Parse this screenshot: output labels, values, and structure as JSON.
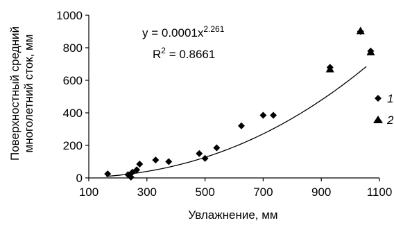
{
  "chart_data": {
    "type": "scatter",
    "xlabel": "Увлажнение, мм",
    "ylabel_lines": [
      "Поверхностный средний",
      "многолетний сток, мм"
    ],
    "xlim": [
      100,
      1100
    ],
    "ylim": [
      0,
      1000
    ],
    "x_ticks": [
      "100",
      "300",
      "500",
      "700",
      "900",
      "1100"
    ],
    "y_ticks": [
      "0",
      "200",
      "400",
      "600",
      "800",
      "1000"
    ],
    "grid": false,
    "legend_position": "right",
    "series": [
      {
        "name": "1",
        "marker": "diamond",
        "points": [
          [
            165,
            25
          ],
          [
            235,
            20
          ],
          [
            245,
            5
          ],
          [
            250,
            35
          ],
          [
            265,
            50
          ],
          [
            275,
            85
          ],
          [
            330,
            110
          ],
          [
            375,
            100
          ],
          [
            480,
            150
          ],
          [
            500,
            120
          ],
          [
            540,
            185
          ],
          [
            625,
            320
          ],
          [
            700,
            385
          ],
          [
            735,
            385
          ],
          [
            930,
            680
          ],
          [
            1035,
            900
          ],
          [
            1070,
            780
          ]
        ]
      },
      {
        "name": "2",
        "marker": "triangle",
        "points": [
          [
            930,
            670
          ],
          [
            1035,
            905
          ],
          [
            1070,
            775
          ]
        ]
      }
    ],
    "trendline": {
      "type": "power",
      "coefficient": 0.0001,
      "exponent": 2.261,
      "x_range": [
        160,
        1055
      ],
      "equation_prefix": "y = 0.0001x",
      "equation_exponent": "2.261",
      "r2_prefix": "R",
      "r2_exponent": "2",
      "r2_value": " = 0.8661"
    }
  }
}
